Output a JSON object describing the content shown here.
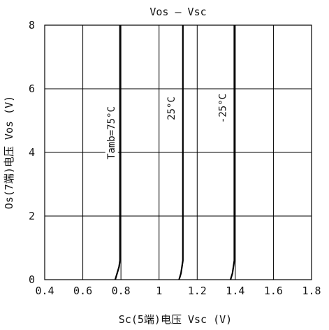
{
  "chart_data": {
    "type": "line",
    "title": "Vos — Vsc",
    "xlabel": "Sc(5端)电压 Vsc  (V)",
    "ylabel": "Os(7端)电压 Vos  (V)",
    "xlim": [
      0.4,
      1.8
    ],
    "ylim": [
      0,
      8
    ],
    "x_ticks": [
      "0.4",
      "0.6",
      "0.8",
      "1",
      "1.2",
      "1.4",
      "1.6",
      "1.8"
    ],
    "x_tick_values": [
      0.4,
      0.6,
      0.8,
      1.0,
      1.2,
      1.4,
      1.6,
      1.8
    ],
    "y_ticks": [
      "0",
      "2",
      "4",
      "6",
      "8"
    ],
    "y_tick_values": [
      0,
      2,
      4,
      6,
      8
    ],
    "grid": true,
    "series": [
      {
        "name": "Tamb=75°C",
        "x": [
          0.77,
          0.775,
          0.78,
          0.79,
          0.795,
          0.795
        ],
        "y": [
          0,
          0.1,
          0.2,
          0.4,
          0.6,
          8
        ]
      },
      {
        "name": "25°C",
        "x": [
          1.105,
          1.11,
          1.115,
          1.12,
          1.125,
          1.125
        ],
        "y": [
          0,
          0.1,
          0.2,
          0.4,
          0.6,
          8
        ]
      },
      {
        "name": "-25°C",
        "x": [
          1.375,
          1.38,
          1.385,
          1.39,
          1.395,
          1.395
        ],
        "y": [
          0,
          0.1,
          0.2,
          0.4,
          0.6,
          8
        ]
      }
    ]
  }
}
